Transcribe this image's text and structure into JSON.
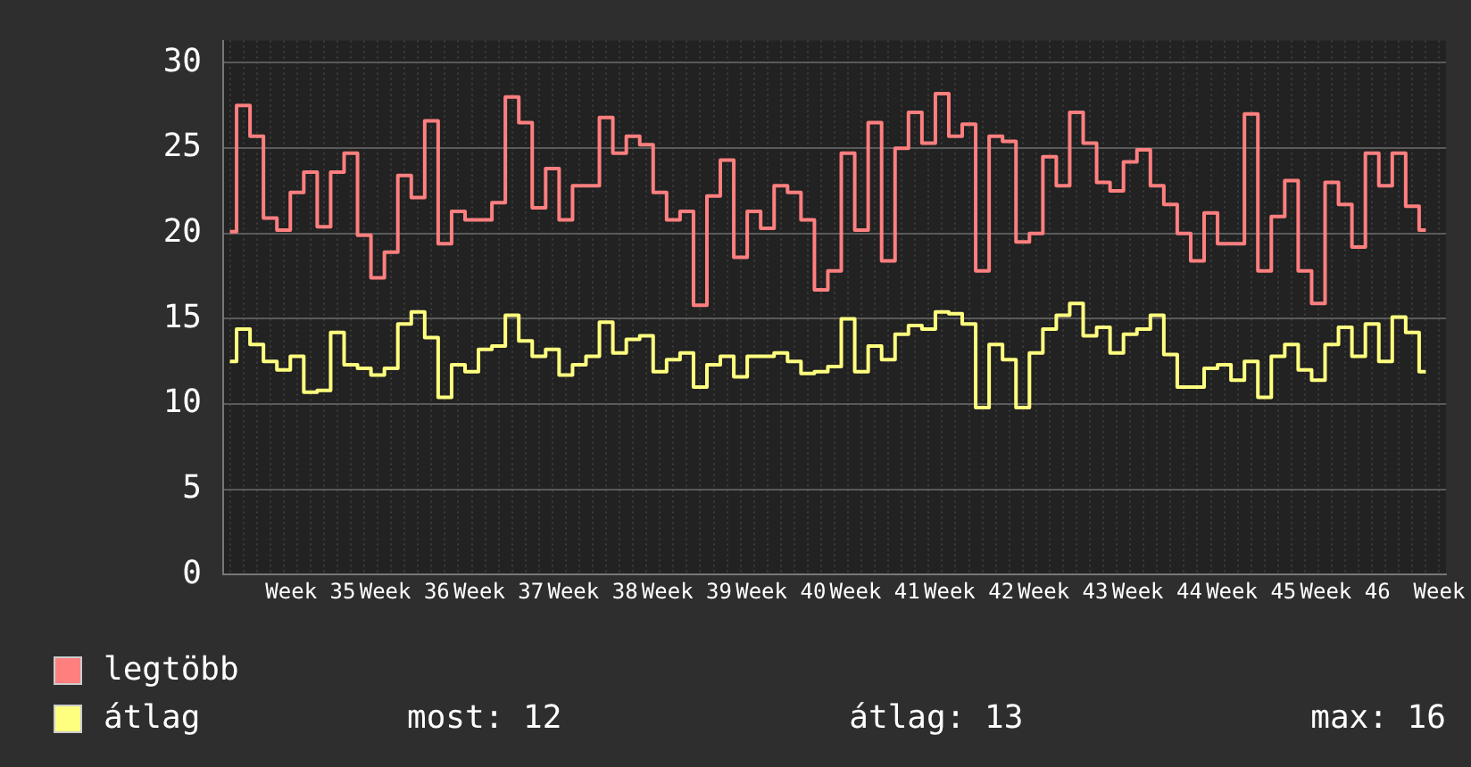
{
  "chart_data": {
    "type": "step",
    "categories": [
      null,
      null,
      null,
      null,
      null,
      null,
      "Week 35",
      null,
      null,
      null,
      null,
      null,
      null,
      "Week 36",
      null,
      null,
      null,
      null,
      null,
      null,
      "Week 37",
      null,
      null,
      null,
      null,
      null,
      null,
      "Week 38",
      null,
      null,
      null,
      null,
      null,
      null,
      "Week 39",
      null,
      null,
      null,
      null,
      null,
      null,
      "Week 40",
      null,
      null,
      null,
      null,
      null,
      null,
      "Week 41",
      null,
      null,
      null,
      null,
      null,
      null,
      "Week 42",
      null,
      null,
      null,
      null,
      null,
      null,
      "Week 43",
      null,
      null,
      null,
      null,
      null,
      null,
      "Week 44",
      null,
      null,
      null,
      null,
      null,
      null,
      "Week 45",
      null,
      null,
      null,
      null,
      null,
      null,
      "Week 46",
      null,
      null,
      null,
      null,
      null,
      null,
      "Week"
    ],
    "series": [
      {
        "name": "legtöbb",
        "color": "#ff7f7f",
        "values": [
          20.1,
          27.5,
          25.7,
          20.9,
          20.2,
          22.4,
          23.6,
          20.4,
          23.6,
          24.7,
          19.9,
          17.4,
          18.9,
          23.4,
          22.1,
          26.6,
          19.4,
          21.3,
          20.8,
          20.8,
          21.8,
          28.0,
          26.5,
          21.5,
          23.8,
          20.8,
          22.8,
          22.8,
          26.8,
          24.7,
          25.7,
          25.2,
          22.4,
          20.8,
          21.3,
          15.8,
          22.2,
          24.3,
          18.6,
          21.3,
          20.3,
          22.8,
          22.4,
          20.8,
          16.7,
          17.8,
          24.7,
          20.2,
          26.5,
          18.4,
          25.0,
          27.1,
          25.3,
          28.2,
          25.7,
          26.4,
          17.8,
          25.7,
          25.4,
          19.5,
          20.0,
          24.5,
          22.8,
          27.1,
          25.3,
          23.0,
          22.5,
          24.2,
          24.9,
          22.8,
          21.7,
          20.0,
          18.4,
          21.2,
          19.4,
          19.4,
          27.0,
          17.8,
          21.0,
          23.1,
          17.8,
          15.9,
          23.0,
          21.7,
          19.2,
          24.7,
          22.8,
          24.7,
          21.6,
          20.2,
          null
        ]
      },
      {
        "name": "átlag",
        "color": "#ffff7f",
        "values": [
          12.5,
          14.4,
          13.5,
          12.5,
          12.0,
          12.8,
          10.7,
          10.8,
          14.2,
          12.3,
          12.1,
          11.7,
          12.1,
          14.7,
          15.4,
          13.9,
          10.4,
          12.3,
          11.9,
          13.2,
          13.4,
          15.2,
          13.7,
          12.8,
          13.2,
          11.7,
          12.3,
          12.8,
          14.8,
          13.0,
          13.8,
          14.0,
          11.9,
          12.6,
          13.0,
          11.0,
          12.3,
          12.8,
          11.6,
          12.8,
          12.8,
          13.0,
          12.5,
          11.8,
          11.9,
          12.2,
          15.0,
          11.9,
          13.4,
          12.6,
          14.1,
          14.6,
          14.4,
          15.4,
          15.3,
          14.7,
          9.8,
          13.5,
          12.6,
          9.8,
          13.0,
          14.4,
          15.2,
          15.9,
          14.0,
          14.5,
          13.0,
          14.1,
          14.4,
          15.2,
          12.9,
          11.0,
          11.0,
          12.1,
          12.3,
          11.4,
          12.5,
          10.4,
          12.8,
          13.5,
          12.0,
          11.4,
          13.5,
          14.5,
          12.8,
          14.7,
          12.5,
          15.1,
          14.2,
          11.9,
          null
        ]
      }
    ],
    "ylim": [
      0,
      31.3
    ],
    "yticks": [
      0,
      5,
      10,
      15,
      20,
      25,
      30
    ],
    "grid": true,
    "legend": "bottom",
    "annotations": [
      "most: 12",
      "átlag: 13",
      "max: 16"
    ]
  }
}
